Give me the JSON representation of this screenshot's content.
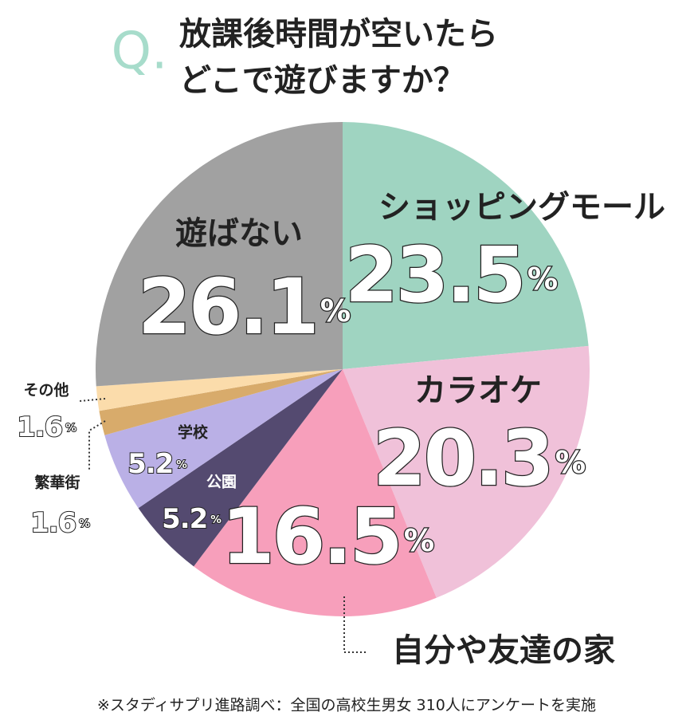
{
  "chart_data": {
    "type": "pie",
    "q_mark": "Q.",
    "title": [
      "放課後時間が空いたら",
      "どこで遊びますか？"
    ],
    "categories": [
      "ショッピングモール",
      "カラオケ",
      "自分や友達の家",
      "公園",
      "学校",
      "繁華街",
      "その他",
      "遊ばない"
    ],
    "values": [
      23.5,
      20.3,
      16.5,
      5.2,
      5.2,
      1.6,
      1.6,
      26.1
    ],
    "value_labels": [
      "23.5%",
      "20.3%",
      "16.5%",
      "5.2%",
      "5.2%",
      "1.6%",
      "1.6%",
      "26.1%"
    ],
    "colors": [
      "#9fd4c1",
      "#f0c1d9",
      "#f79fbb",
      "#544a70",
      "#bab0e6",
      "#d8ab6b",
      "#fbdcab",
      "#a1a1a1"
    ],
    "source": "※スタディサプリ進路調べ：全国の高校生男女 310人にアンケートを実施"
  }
}
